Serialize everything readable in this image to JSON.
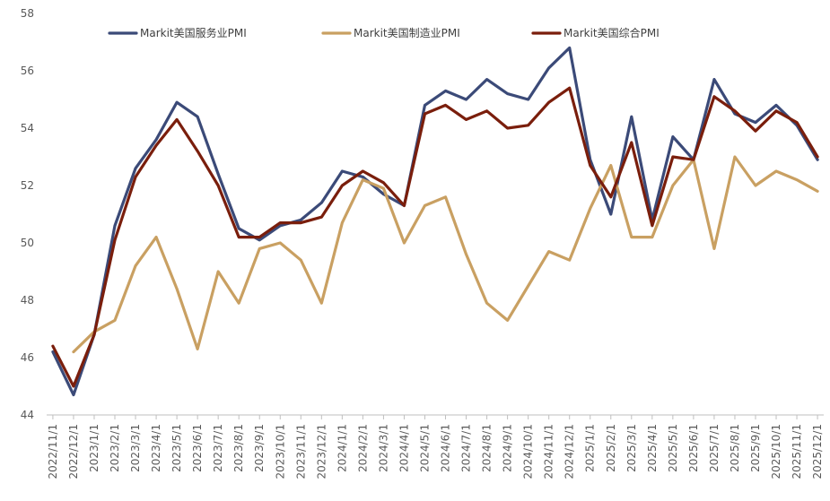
{
  "chart_data": {
    "type": "line",
    "title": "",
    "xlabel": "",
    "ylabel": "",
    "ylim": [
      44,
      58
    ],
    "yticks": [
      44,
      46,
      48,
      50,
      52,
      54,
      56,
      58
    ],
    "grid": false,
    "legend_position": "top",
    "categories": [
      "2022/11/1",
      "2022/12/1",
      "2023/1/1",
      "2023/2/1",
      "2023/3/1",
      "2023/4/1",
      "2023/5/1",
      "2023/6/1",
      "2023/7/1",
      "2023/8/1",
      "2023/9/1",
      "2023/10/1",
      "2023/11/1",
      "2023/12/1",
      "2024/1/1",
      "2024/2/1",
      "2024/3/1",
      "2024/4/1",
      "2024/5/1",
      "2024/6/1",
      "2024/7/1",
      "2024/8/1",
      "2024/9/1",
      "2024/10/1",
      "2024/11/1",
      "2024/12/1",
      "2025/1/1",
      "2025/2/1",
      "2025/3/1",
      "2025/4/1",
      "2025/5/1",
      "2025/6/1",
      "2025/7/1",
      "2025/8/1",
      "2025/9/1",
      "2025/10/1",
      "2025/11/1",
      "2025/12/1"
    ],
    "series": [
      {
        "name": "Markit美国服务业PMI",
        "color": "#3b4a78",
        "values": [
          46.2,
          44.7,
          46.8,
          50.6,
          52.6,
          53.6,
          54.9,
          54.4,
          52.4,
          50.5,
          50.1,
          50.6,
          50.8,
          51.4,
          52.5,
          52.3,
          51.7,
          51.3,
          54.8,
          55.3,
          55.0,
          55.7,
          55.2,
          55.0,
          56.1,
          56.8,
          52.9,
          51.0,
          54.4,
          50.8,
          53.7,
          52.9,
          55.7,
          54.5,
          54.2,
          54.8,
          54.1,
          52.9
        ]
      },
      {
        "name": "Markit美国制造业PMI",
        "color": "#c9a062",
        "values": [
          null,
          46.2,
          46.9,
          47.3,
          49.2,
          50.2,
          48.4,
          46.3,
          49.0,
          47.9,
          49.8,
          50.0,
          49.4,
          47.9,
          50.7,
          52.2,
          51.9,
          50.0,
          51.3,
          51.6,
          49.6,
          47.9,
          47.3,
          48.5,
          49.7,
          49.4,
          51.2,
          52.7,
          50.2,
          50.2,
          52.0,
          52.9,
          49.8,
          53.0,
          52.0,
          52.5,
          52.2,
          51.8
        ]
      },
      {
        "name": "Markit美国综合PMI",
        "color": "#7a1e0c",
        "values": [
          46.4,
          45.0,
          46.8,
          50.1,
          52.3,
          53.4,
          54.3,
          53.2,
          52.0,
          50.2,
          50.2,
          50.7,
          50.7,
          50.9,
          52.0,
          52.5,
          52.1,
          51.3,
          54.5,
          54.8,
          54.3,
          54.6,
          54.0,
          54.1,
          54.9,
          55.4,
          52.7,
          51.6,
          53.5,
          50.6,
          53.0,
          52.9,
          55.1,
          54.6,
          53.9,
          54.6,
          54.2,
          53.0
        ]
      }
    ]
  }
}
